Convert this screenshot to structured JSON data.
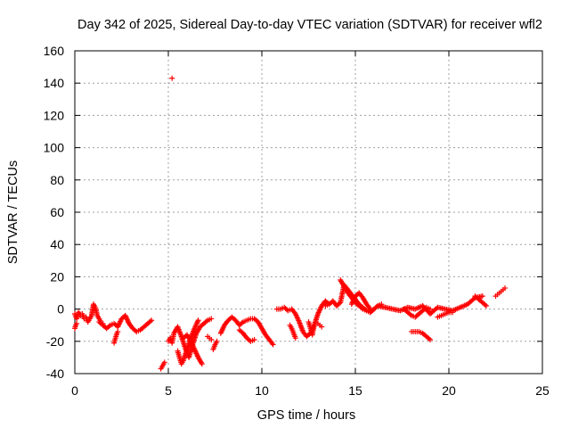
{
  "chart_data": {
    "type": "scatter",
    "title": "Day 342 of 2025, Sidereal Day-to-day VTEC variation (SDTVAR) for receiver wfl2",
    "xlabel": "GPS time / hours",
    "ylabel": "SDTVAR / TECUs",
    "xlim": [
      0,
      25
    ],
    "ylim": [
      -40,
      160
    ],
    "xticks": [
      "0",
      "5",
      "10",
      "15",
      "20",
      "25"
    ],
    "yticks": [
      "-40",
      "-20",
      "0",
      "20",
      "40",
      "60",
      "80",
      "100",
      "120",
      "140",
      "160"
    ],
    "grid": true,
    "marker": "+",
    "series": [
      {
        "name": "SDTVAR",
        "color": "#ff0000",
        "segments": [
          {
            "x": [
              0.0,
              0.1,
              0.2,
              0.3,
              0.4,
              0.5,
              0.6,
              0.7,
              0.8,
              0.9,
              1.0,
              1.1,
              1.2,
              1.3,
              1.4,
              1.5
            ],
            "y": [
              -3,
              -6,
              -2,
              -4,
              -3,
              -6,
              -5,
              -8,
              -6,
              -4,
              3,
              1,
              -4,
              -6,
              -8,
              -9
            ]
          },
          {
            "x": [
              0.0,
              0.05,
              0.1
            ],
            "y": [
              -12,
              -10,
              -9
            ]
          },
          {
            "x": [
              1.3,
              1.5,
              1.7,
              1.9,
              2.1,
              2.3,
              2.5,
              2.7,
              2.9,
              3.1,
              3.3,
              3.5,
              3.7,
              3.9,
              4.1
            ],
            "y": [
              -8,
              -10,
              -12,
              -10,
              -9,
              -11,
              -6,
              -4,
              -9,
              -12,
              -14,
              -13,
              -11,
              -9,
              -7
            ]
          },
          {
            "x": [
              2.1,
              2.15,
              2.2,
              2.25,
              2.3
            ],
            "y": [
              -21,
              -19,
              -17,
              -15,
              -14
            ]
          },
          {
            "x": [
              4.6,
              4.7,
              4.8
            ],
            "y": [
              -37,
              -35,
              -33
            ]
          },
          {
            "x": [
              5.2
            ],
            "y": [
              143
            ]
          },
          {
            "x": [
              5.0,
              5.1,
              5.2,
              5.3,
              5.5,
              5.7,
              5.9,
              6.1,
              6.3,
              6.5,
              6.7,
              6.9,
              7.1,
              7.3
            ],
            "y": [
              -20,
              -18,
              -21,
              -15,
              -11,
              -17,
              -24,
              -30,
              -22,
              -15,
              -11,
              -9,
              -7,
              -6
            ]
          },
          {
            "x": [
              5.5,
              5.6,
              5.7,
              5.8,
              6.0,
              6.2,
              6.4,
              6.6
            ],
            "y": [
              -26,
              -30,
              -34,
              -32,
              -25,
              -18,
              -12,
              -7
            ]
          },
          {
            "x": [
              5.8,
              6.0,
              6.2,
              6.4,
              6.6,
              6.8
            ],
            "y": [
              -18,
              -16,
              -20,
              -25,
              -30,
              -34
            ]
          },
          {
            "x": [
              7.1,
              7.2,
              7.3
            ],
            "y": [
              -17,
              -18,
              -19
            ]
          },
          {
            "x": [
              7.4,
              7.5,
              7.6
            ],
            "y": [
              -25,
              -22,
              -20
            ]
          },
          {
            "x": [
              7.8,
              8.0,
              8.2,
              8.4,
              8.6,
              8.8,
              9.0,
              9.2,
              9.4,
              9.6,
              9.8,
              10.0,
              10.2,
              10.4,
              10.6
            ],
            "y": [
              -15,
              -10,
              -7,
              -5,
              -7,
              -10,
              -8,
              -7,
              -6,
              -6,
              -8,
              -12,
              -16,
              -19,
              -22
            ]
          },
          {
            "x": [
              8.8,
              9.0,
              9.2,
              9.4,
              9.6
            ],
            "y": [
              -13,
              -15,
              -18,
              -20,
              -19
            ]
          },
          {
            "x": [
              10.8,
              11.0,
              11.2,
              11.4,
              11.6,
              11.8,
              12.0,
              12.2,
              12.4,
              12.6,
              12.8,
              13.0,
              13.2,
              13.4,
              13.6
            ],
            "y": [
              0,
              0,
              1,
              -1,
              0,
              -3,
              -8,
              -14,
              -17,
              -15,
              -10,
              -3,
              2,
              5,
              3
            ]
          },
          {
            "x": [
              11.5,
              11.6,
              11.7,
              11.8
            ],
            "y": [
              -10,
              -12,
              -15,
              -18
            ]
          },
          {
            "x": [
              12.5,
              12.6,
              12.7,
              12.8
            ],
            "y": [
              -8,
              -12,
              -16,
              -10
            ]
          },
          {
            "x": [
              13.0,
              13.1,
              13.2
            ],
            "y": [
              -9,
              -10,
              -11
            ]
          },
          {
            "x": [
              13.4,
              13.6,
              13.8,
              14.0,
              14.2,
              14.4,
              14.6,
              14.8,
              15.0,
              15.2,
              15.4,
              15.6,
              15.8,
              16.0,
              16.2,
              16.4
            ],
            "y": [
              2,
              3,
              5,
              2,
              4,
              15,
              12,
              9,
              6,
              3,
              1,
              -1,
              -2,
              0,
              2,
              3
            ]
          },
          {
            "x": [
              14.2,
              14.4,
              14.6,
              14.8,
              15.0,
              15.2,
              15.4,
              15.6,
              15.8,
              16.0
            ],
            "y": [
              18,
              14,
              10,
              7,
              4,
              2,
              0,
              -1,
              -2,
              0
            ]
          },
          {
            "x": [
              14.8,
              15.0,
              15.2,
              15.4,
              15.6,
              15.8
            ],
            "y": [
              3,
              8,
              10,
              7,
              3,
              0
            ]
          },
          {
            "x": [
              16.2,
              16.6,
              17.0,
              17.4,
              17.8,
              18.2,
              18.6,
              19.0,
              19.4,
              19.8,
              20.2,
              20.6,
              21.0,
              21.4,
              21.8
            ],
            "y": [
              2,
              1,
              0,
              -1,
              1,
              0,
              2,
              -3,
              1,
              0,
              -1,
              1,
              3,
              7,
              8
            ]
          },
          {
            "x": [
              17.6,
              17.8,
              18.0,
              18.2,
              18.4,
              18.6,
              18.8,
              19.0
            ],
            "y": [
              0,
              -2,
              -4,
              -5,
              -3,
              -1,
              1,
              0
            ]
          },
          {
            "x": [
              18.0,
              18.2,
              18.4,
              18.6,
              18.8,
              19.0
            ],
            "y": [
              -14,
              -14,
              -14,
              -15,
              -17,
              -19
            ]
          },
          {
            "x": [
              19.4,
              19.6,
              19.8,
              20.0,
              20.2
            ],
            "y": [
              -5,
              -4,
              -3,
              -2,
              -2
            ]
          },
          {
            "x": [
              21.4,
              21.6,
              21.8,
              22.0
            ],
            "y": [
              8,
              6,
              4,
              2
            ]
          },
          {
            "x": [
              22.5,
              22.6,
              22.7,
              22.8,
              22.9,
              23.0
            ],
            "y": [
              8,
              9,
              10,
              11,
              12,
              13
            ]
          }
        ]
      }
    ]
  }
}
